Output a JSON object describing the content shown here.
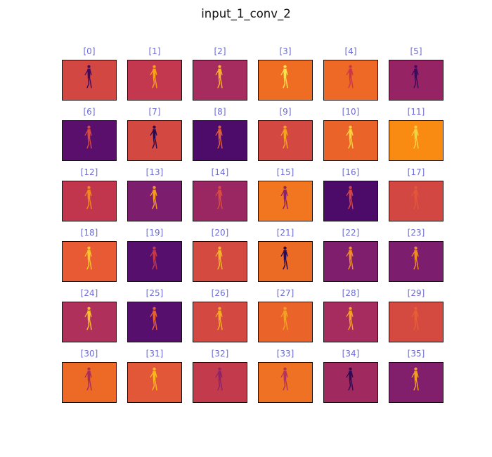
{
  "figure": {
    "title": "input_1_conv_2"
  },
  "colormap": "inferno",
  "colors": {
    "label": "#6b6bd6",
    "frame": "#111111",
    "background": "#ffffff"
  },
  "chart_data": {
    "type": "heatmap",
    "title": "input_1_conv_2",
    "layout": {
      "rows": 6,
      "cols": 6
    },
    "panels": [
      {
        "label": "[0]",
        "background": "#d34743",
        "figure": "#3f0a5e"
      },
      {
        "label": "[1]",
        "background": "#c4384f",
        "figure": "#f7a217"
      },
      {
        "label": "[2]",
        "background": "#a62b5f",
        "figure": "#f8b22b"
      },
      {
        "label": "[3]",
        "background": "#ee6d23",
        "figure": "#fbe04f"
      },
      {
        "label": "[4]",
        "background": "#ed6925",
        "figure": "#c9374c"
      },
      {
        "label": "[5]",
        "background": "#962464",
        "figure": "#3d0a5c"
      },
      {
        "label": "[6]",
        "background": "#5a0f6d",
        "figure": "#d94c3c"
      },
      {
        "label": "[7]",
        "background": "#d44842",
        "figure": "#2b0b4e"
      },
      {
        "label": "[8]",
        "background": "#4d0b6a",
        "figure": "#e06139"
      },
      {
        "label": "[9]",
        "background": "#d44842",
        "figure": "#f6a51f"
      },
      {
        "label": "[10]",
        "background": "#ea6429",
        "figure": "#fcd33d"
      },
      {
        "label": "[11]",
        "background": "#f98b12",
        "figure": "#f3d345"
      },
      {
        "label": "[12]",
        "background": "#c1364d",
        "figure": "#f1891b"
      },
      {
        "label": "[13]",
        "background": "#7d1d6d",
        "figure": "#f59c20"
      },
      {
        "label": "[14]",
        "background": "#9a2662",
        "figure": "#d84d3f"
      },
      {
        "label": "[15]",
        "background": "#f27620",
        "figure": "#8a2267"
      },
      {
        "label": "[16]",
        "background": "#4c0b68",
        "figure": "#d54744"
      },
      {
        "label": "[17]",
        "background": "#d34743",
        "figure": "#e3563a"
      },
      {
        "label": "[18]",
        "background": "#e75a33",
        "figure": "#f9c72d"
      },
      {
        "label": "[19]",
        "background": "#560f6d",
        "figure": "#c23a4a"
      },
      {
        "label": "[20]",
        "background": "#d44a41",
        "figure": "#f3b228"
      },
      {
        "label": "[21]",
        "background": "#ec6b24",
        "figure": "#2c0a4f"
      },
      {
        "label": "[22]",
        "background": "#7f1e6c",
        "figure": "#f18d22"
      },
      {
        "label": "[23]",
        "background": "#7c1d6d",
        "figure": "#f08c25"
      },
      {
        "label": "[24]",
        "background": "#af305b",
        "figure": "#f9be2b"
      },
      {
        "label": "[25]",
        "background": "#570f6d",
        "figure": "#e66035"
      },
      {
        "label": "[26]",
        "background": "#d44842",
        "figure": "#f7ab22"
      },
      {
        "label": "[27]",
        "background": "#ea6429",
        "figure": "#f3a125"
      },
      {
        "label": "[28]",
        "background": "#a62b5f",
        "figure": "#f5a122"
      },
      {
        "label": "[29]",
        "background": "#d44a41",
        "figure": "#e85d35"
      },
      {
        "label": "[30]",
        "background": "#ec6a26",
        "figure": "#a82c5c"
      },
      {
        "label": "[31]",
        "background": "#e25737",
        "figure": "#fbb71d"
      },
      {
        "label": "[32]",
        "background": "#c33a4d",
        "figure": "#8f2367"
      },
      {
        "label": "[33]",
        "background": "#ef7123",
        "figure": "#b2345a"
      },
      {
        "label": "[34]",
        "background": "#a02a60",
        "figure": "#2d0a51"
      },
      {
        "label": "[35]",
        "background": "#811f6c",
        "figure": "#f49e29"
      }
    ]
  }
}
